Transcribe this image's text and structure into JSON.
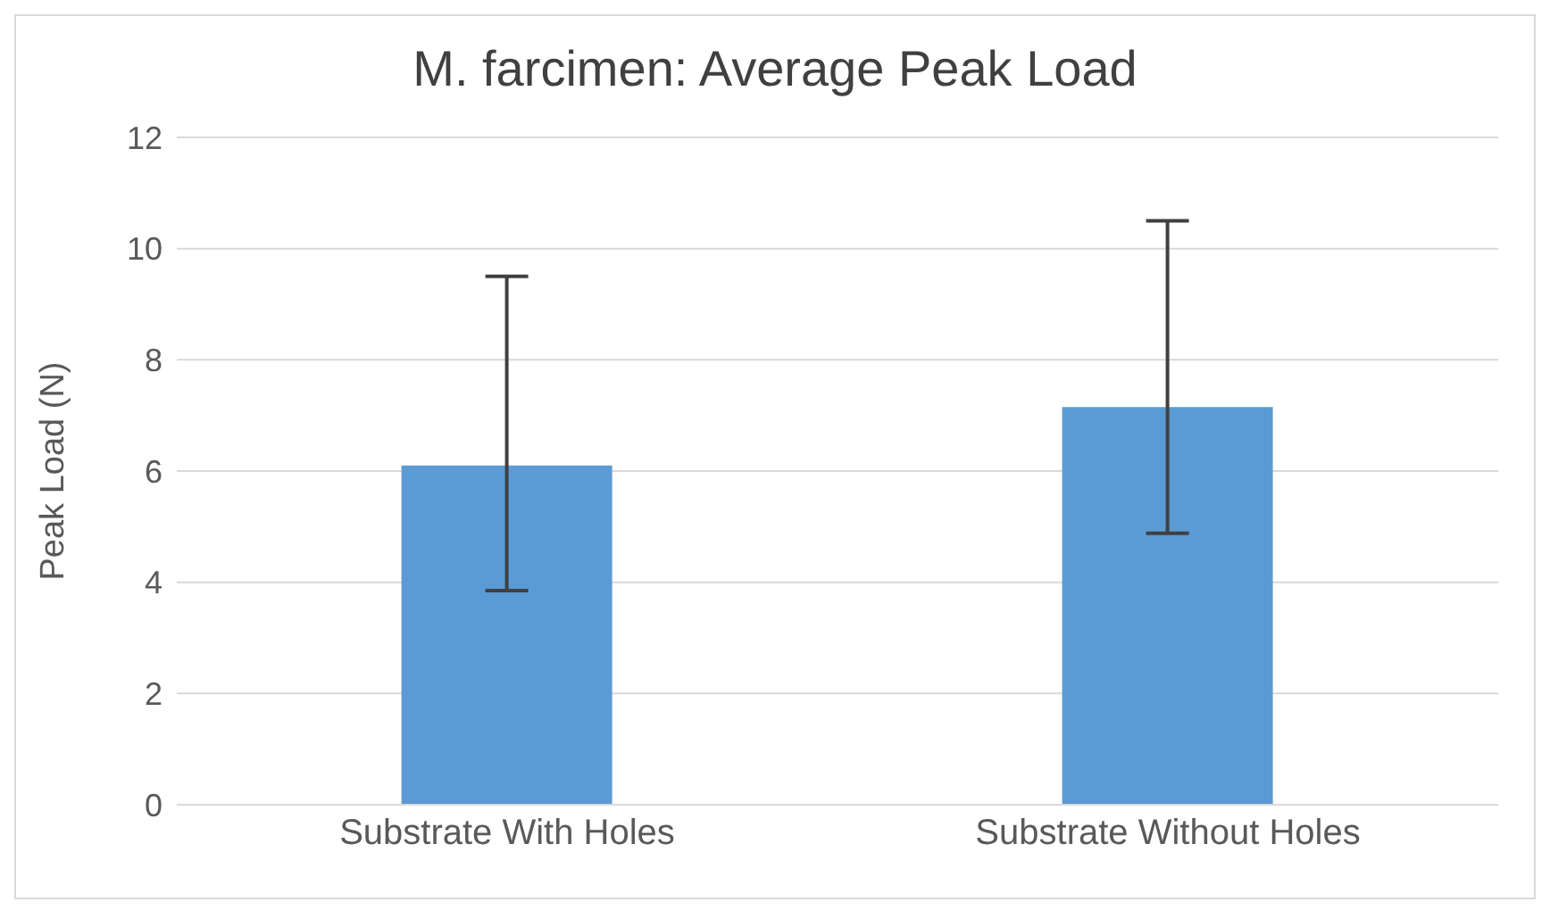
{
  "chart_data": {
    "type": "bar",
    "title": "M. farcimen: Average Peak Load",
    "ylabel": "Peak Load (N)",
    "categories": [
      "Substrate With Holes",
      "Substrate Without Holes"
    ],
    "values": [
      6.1,
      7.15
    ],
    "color": "#5b9bd5",
    "errors": [
      [
        3.85,
        9.5
      ],
      [
        4.88,
        10.5
      ]
    ],
    "ylim": [
      0,
      12
    ],
    "yticks": [
      0,
      2,
      4,
      6,
      8,
      10,
      12
    ],
    "grid": "y"
  }
}
